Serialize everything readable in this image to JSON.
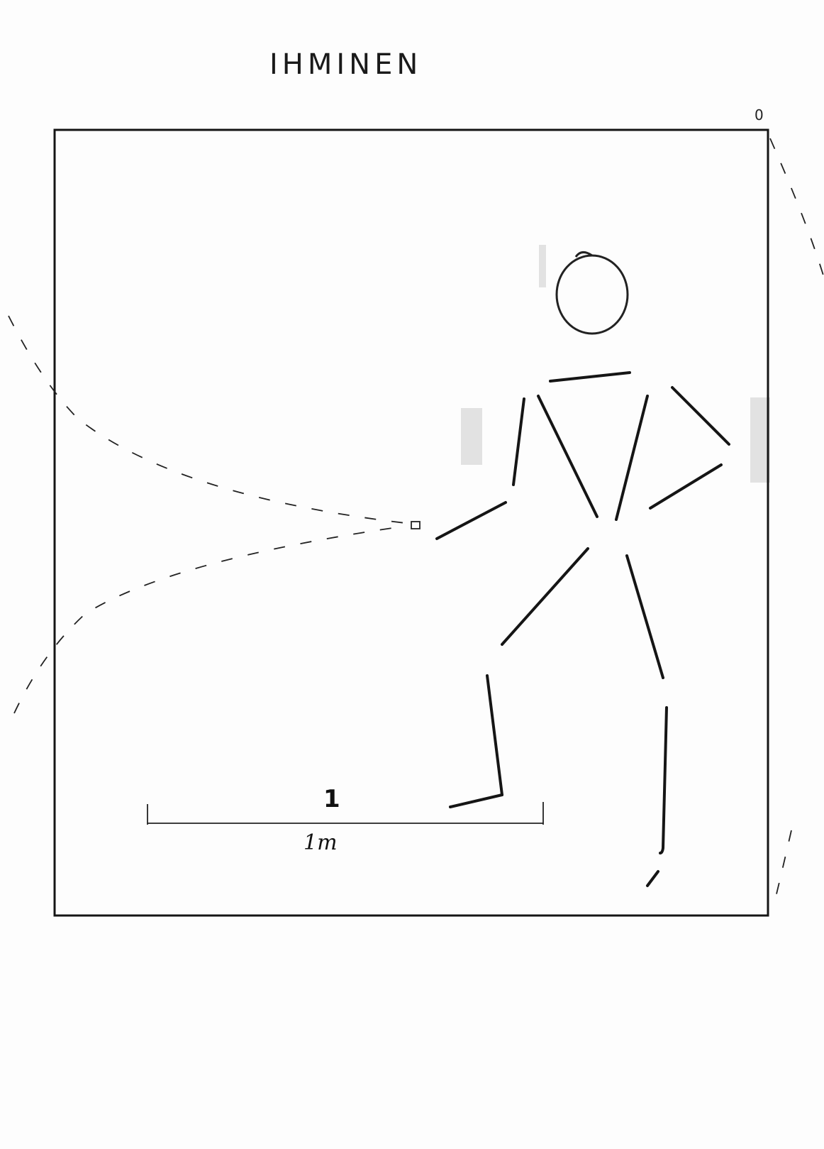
{
  "title": "IHMINEN",
  "corner_mark": "0",
  "scale": {
    "number": "1",
    "unit": "1m"
  },
  "colors": {
    "ink": "#151515",
    "paper": "#fdfdfd"
  }
}
